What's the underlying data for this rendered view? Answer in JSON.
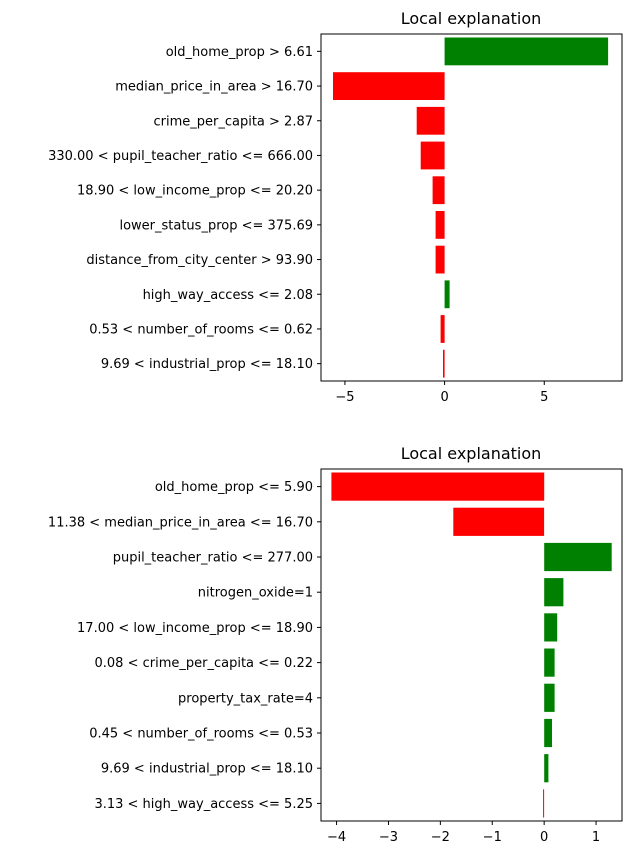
{
  "chart_data": [
    {
      "type": "bar",
      "orientation": "horizontal",
      "title": "Local explanation",
      "xlabel": "",
      "ylabel": "",
      "xlim": [
        -6.2,
        8.9
      ],
      "xticks": [
        -5,
        0,
        5
      ],
      "grid": false,
      "colors": {
        "positive": "#008000",
        "negative": "#ff0000"
      },
      "categories": [
        "old_home_prop > 6.61",
        "median_price_in_area > 16.70",
        "crime_per_capita > 2.87",
        "330.00 < pupil_teacher_ratio <= 666.00",
        "18.90 < low_income_prop <= 20.20",
        "lower_status_prop <= 375.69",
        "distance_from_city_center > 93.90",
        "high_way_access <= 2.08",
        "0.53 < number_of_rooms <= 0.62",
        "9.69 < industrial_prop <= 18.10"
      ],
      "values": [
        8.2,
        -5.6,
        -1.4,
        -1.2,
        -0.6,
        -0.45,
        -0.45,
        0.25,
        -0.2,
        -0.08
      ]
    },
    {
      "type": "bar",
      "orientation": "horizontal",
      "title": "Local explanation",
      "xlabel": "",
      "ylabel": "",
      "xlim": [
        -4.3,
        1.5
      ],
      "xticks": [
        -4,
        -3,
        -2,
        -1,
        0,
        1
      ],
      "grid": false,
      "colors": {
        "positive": "#008000",
        "negative": "#ff0000"
      },
      "categories": [
        "old_home_prop <= 5.90",
        "11.38 < median_price_in_area <= 16.70",
        "pupil_teacher_ratio <= 277.00",
        "nitrogen_oxide=1",
        "17.00 < low_income_prop <= 18.90",
        "0.08 < crime_per_capita <= 0.22",
        "property_tax_rate=4",
        "0.45 < number_of_rooms <= 0.53",
        "9.69 < industrial_prop <= 18.10",
        "3.13 < high_way_access <= 5.25"
      ],
      "values": [
        -4.1,
        -1.75,
        1.3,
        0.37,
        0.25,
        0.2,
        0.2,
        0.15,
        0.08,
        -0.02
      ]
    }
  ]
}
